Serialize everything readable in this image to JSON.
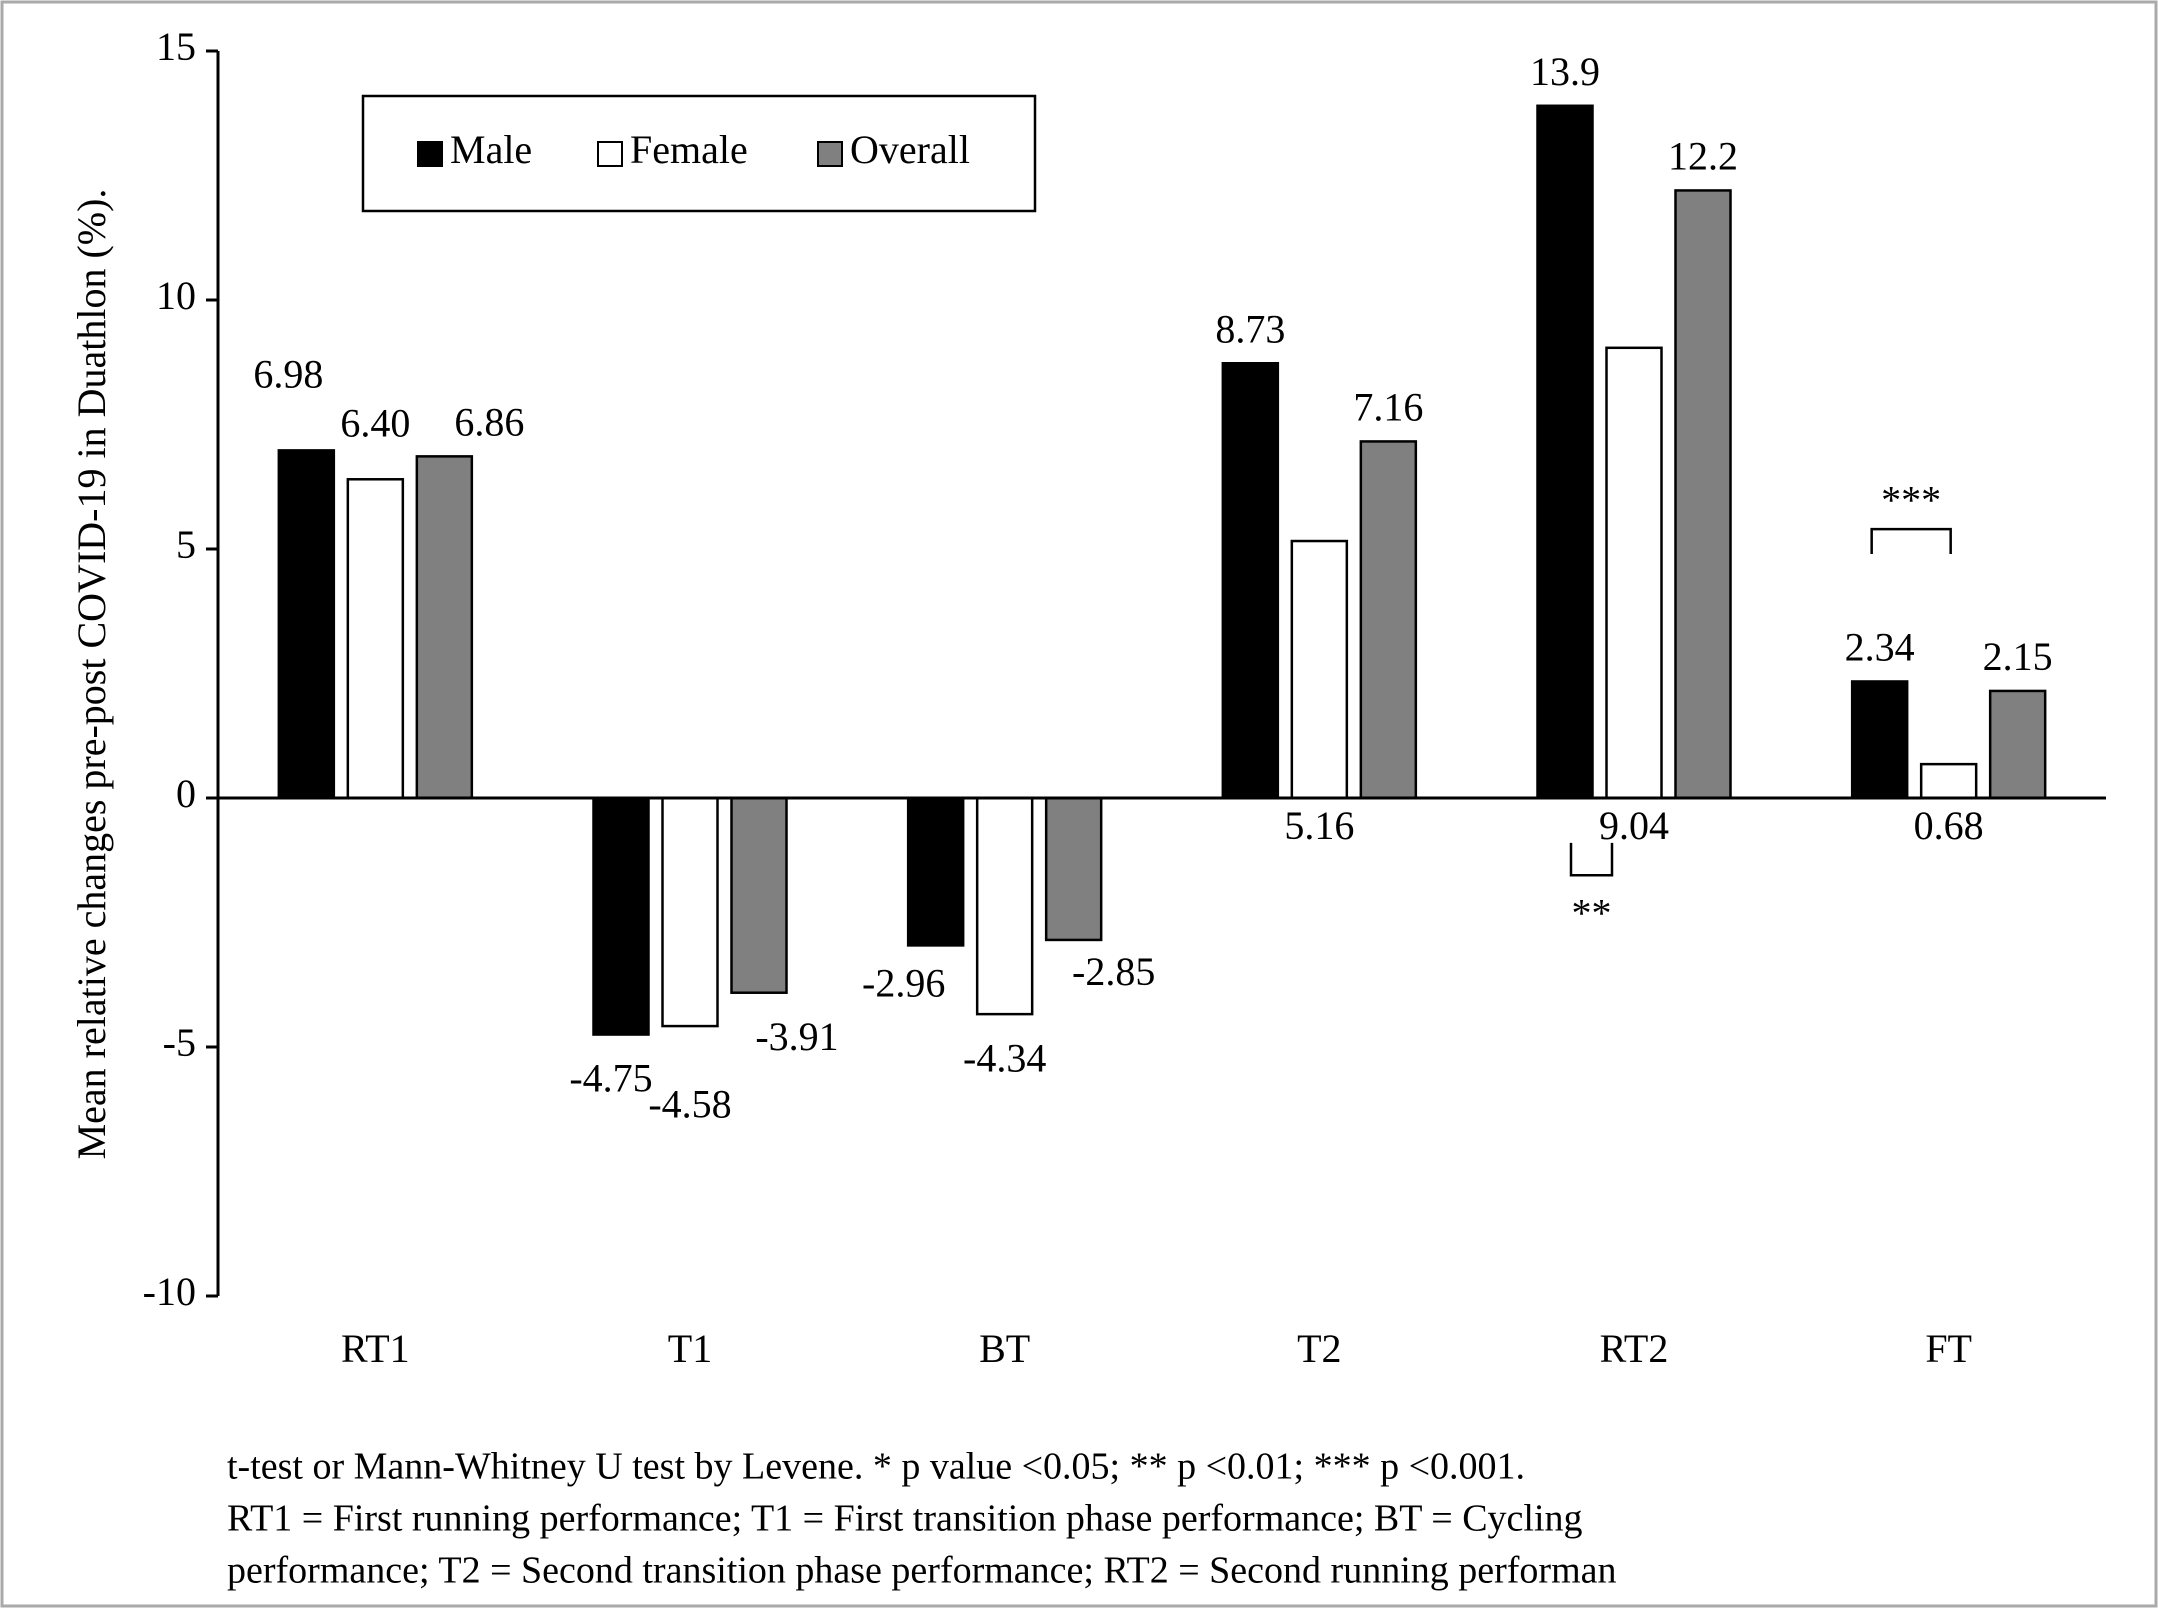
{
  "chart_data": {
    "type": "bar",
    "y_label": "Mean relative changes pre-post COVID-19 in Duathlon (%).",
    "categories": [
      "RT1",
      "T1",
      "BT",
      "T2",
      "RT2",
      "FT"
    ],
    "series": [
      {
        "name": "Male",
        "color": "#000000",
        "values": [
          6.98,
          -4.75,
          -2.96,
          8.73,
          13.9,
          2.34
        ],
        "value_labels": [
          "6.98",
          "-4.75",
          "-2.96",
          "8.73",
          "13.9",
          "2.34"
        ]
      },
      {
        "name": "Female",
        "color": "#ffffff",
        "values": [
          6.4,
          -4.58,
          -4.34,
          5.16,
          9.04,
          0.68
        ],
        "value_labels": [
          "6.40",
          "-4.58",
          "-4.34",
          "5.16",
          "9.04",
          "0.68"
        ]
      },
      {
        "name": "Overall",
        "color": "#808080",
        "values": [
          6.86,
          -3.91,
          -2.85,
          7.16,
          12.2,
          2.15
        ],
        "value_labels": [
          "6.86",
          "-3.91",
          "-2.85",
          "7.16",
          "12.2",
          "2.15"
        ]
      }
    ],
    "ylim": [
      -10,
      15
    ],
    "yticks": [
      15,
      10,
      5,
      0,
      -5,
      -10
    ],
    "grid": false,
    "legend": "upper left",
    "annotations": [
      "***",
      "**"
    ],
    "note": [
      "t-test or Mann-Whitney U test by Levene. * p value <0.05; ** p <0.01; *** p <0.001.",
      "RT1 = First running performance; T1 = First transition phase performance; BT = Cycling",
      "performance; T2 = Second transition phase performance; RT2 = Second running performan"
    ]
  }
}
